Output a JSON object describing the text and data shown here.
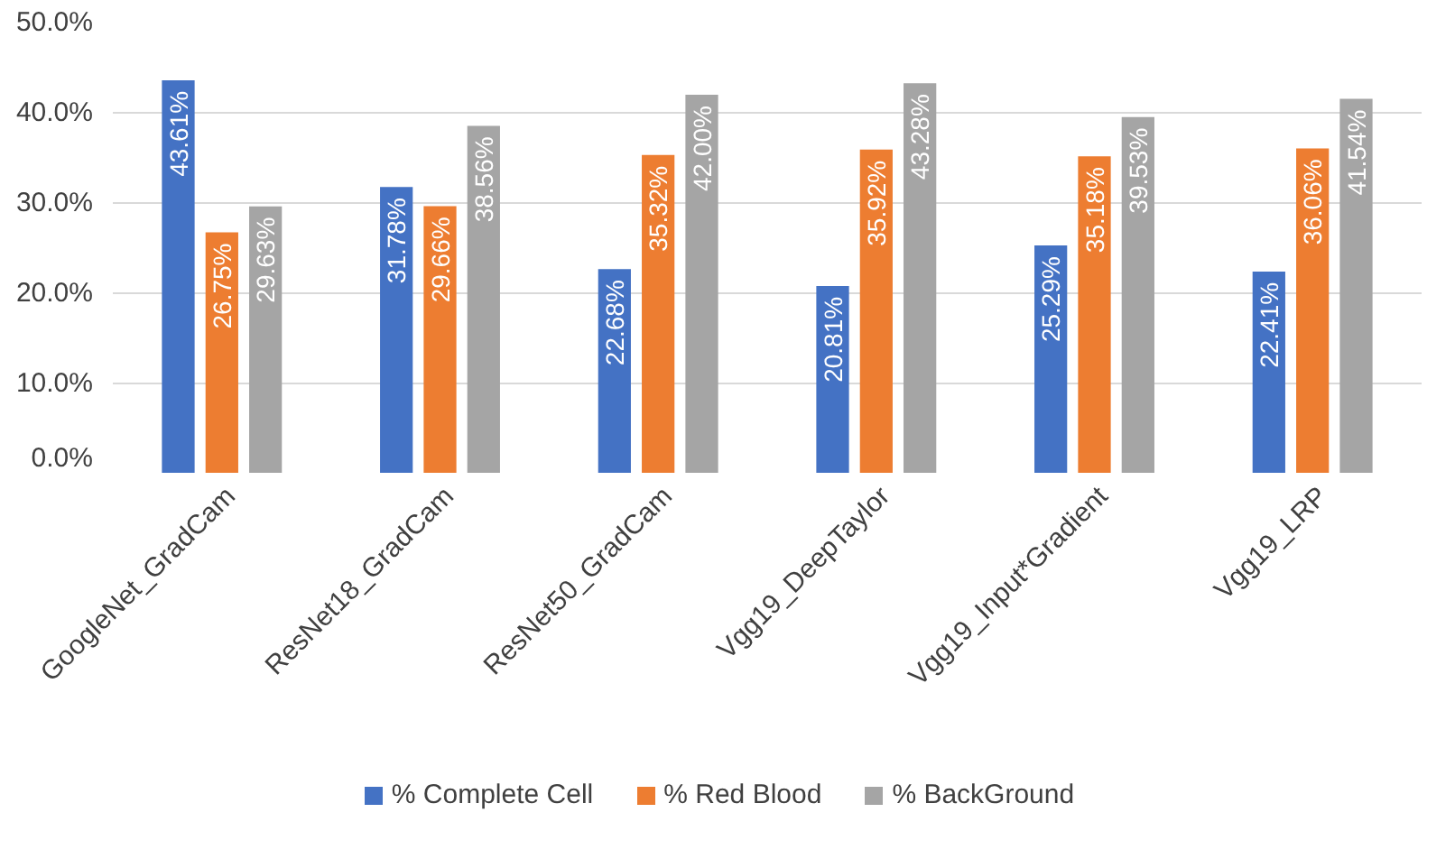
{
  "chart_data": {
    "type": "bar",
    "categories": [
      "GoogleNet_GradCam",
      "ResNet18_GradCam",
      "ResNet50_GradCam",
      "Vgg19_DeepTaylor",
      "Vgg19_Input*Gradient",
      "Vgg19_LRP"
    ],
    "series": [
      {
        "name": "% Complete Cell",
        "color": "#4472c4",
        "values": [
          43.61,
          31.78,
          22.68,
          20.81,
          25.29,
          22.41
        ],
        "value_labels": [
          "43.61%",
          "31.78%",
          "22.68%",
          "20.81%",
          "25.29%",
          "22.41%"
        ]
      },
      {
        "name": "% Red Blood",
        "color": "#ed7d31",
        "values": [
          26.75,
          29.66,
          35.32,
          35.92,
          35.18,
          36.06
        ],
        "value_labels": [
          "26.75%",
          "29.66%",
          "35.32%",
          "35.92%",
          "35.18%",
          "36.06%"
        ]
      },
      {
        "name": "% BackGround",
        "color": "#a5a5a5",
        "values": [
          29.63,
          38.56,
          42.0,
          43.28,
          39.53,
          41.54
        ],
        "value_labels": [
          "29.63%",
          "38.56%",
          "42.00%",
          "43.28%",
          "39.53%",
          "41.54%"
        ]
      }
    ],
    "ylim": [
      0,
      50
    ],
    "yticks": [
      {
        "value": 0,
        "label": "0.0%"
      },
      {
        "value": 10,
        "label": "10.0%"
      },
      {
        "value": 20,
        "label": "20.0%"
      },
      {
        "value": 30,
        "label": "30.0%"
      },
      {
        "value": 40,
        "label": "40.0%"
      },
      {
        "value": 50,
        "label": "50.0%"
      }
    ],
    "grid": "y",
    "legend": "bottom"
  }
}
